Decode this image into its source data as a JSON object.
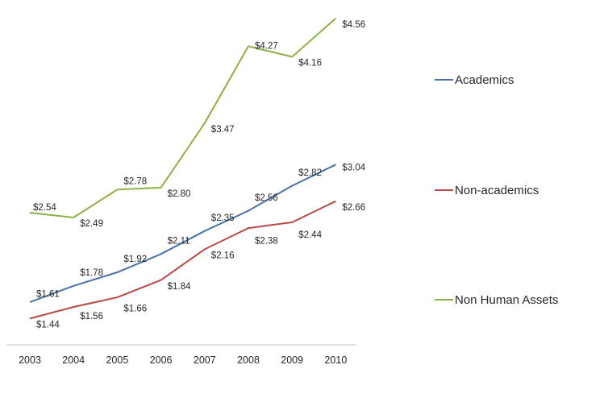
{
  "chart_data": {
    "type": "line",
    "x": [
      "2003",
      "2004",
      "2005",
      "2006",
      "2007",
      "2008",
      "2009",
      "2010"
    ],
    "ylim": [
      1.15,
      4.65
    ],
    "grid": false,
    "legend_position": "right",
    "series": [
      {
        "name": "Academics",
        "color": "#4a72a8",
        "values": [
          1.61,
          1.78,
          1.92,
          2.11,
          2.35,
          2.56,
          2.82,
          3.04
        ],
        "labels": [
          "$1.61",
          "$1.78",
          "$1.92",
          "$2.11",
          "$2.35",
          "$2.56",
          "$2.82",
          "$3.04"
        ]
      },
      {
        "name": "Non-academics",
        "color": "#b84a47",
        "values": [
          1.44,
          1.56,
          1.66,
          1.84,
          2.16,
          2.38,
          2.44,
          2.66
        ],
        "labels": [
          "$1.44",
          "$1.56",
          "$1.66",
          "$1.84",
          "$2.16",
          "$2.38",
          "$2.44",
          "$2.66"
        ]
      },
      {
        "name": "Non Human Assets",
        "color": "#8cb043",
        "values": [
          2.54,
          2.49,
          2.78,
          2.8,
          3.47,
          4.27,
          4.16,
          4.56
        ],
        "labels": [
          "$2.54",
          "$2.49",
          "$2.78",
          "$2.80",
          "$3.47",
          "$4.27",
          "$4.16",
          "$4.56"
        ]
      }
    ]
  }
}
